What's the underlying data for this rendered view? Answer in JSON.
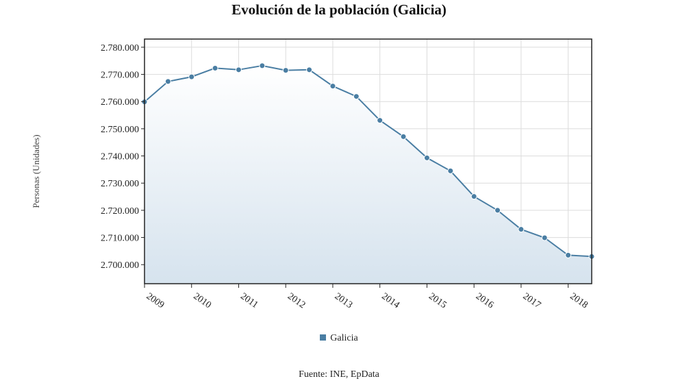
{
  "chart_data": {
    "type": "area",
    "title": "Evolución de la población (Galicia)",
    "xlabel": "",
    "ylabel": "Personas (Unidades)",
    "source": "Fuente: INE, EpData",
    "legend": {
      "label": "Galicia",
      "placement": "bottom-center"
    },
    "grid": true,
    "xlim": [
      2009,
      2018.5
    ],
    "ylim": [
      2693000,
      2783000
    ],
    "x_ticks": [
      2009,
      2010,
      2011,
      2012,
      2013,
      2014,
      2015,
      2016,
      2017,
      2018
    ],
    "x_tick_labels": [
      "2009",
      "2010",
      "2011",
      "2012",
      "2013",
      "2014",
      "2015",
      "2016",
      "2017",
      "2018"
    ],
    "y_ticks": [
      2700000,
      2710000,
      2720000,
      2730000,
      2740000,
      2750000,
      2760000,
      2770000,
      2780000
    ],
    "y_tick_labels": [
      "2.700.000",
      "2.710.000",
      "2.720.000",
      "2.730.000",
      "2.740.000",
      "2.750.000",
      "2.760.000",
      "2.770.000",
      "2.780.000"
    ],
    "series": [
      {
        "name": "Galicia",
        "color": "#4a7ea3",
        "x": [
          2009,
          2009.5,
          2010,
          2010.5,
          2011,
          2011.5,
          2012,
          2012.5,
          2013,
          2013.5,
          2014,
          2014.5,
          2015,
          2015.5,
          2016,
          2016.5,
          2017,
          2017.5,
          2018,
          2018.5
        ],
        "values": [
          2759900,
          2767400,
          2769100,
          2772300,
          2771700,
          2773200,
          2771500,
          2771700,
          2765700,
          2761900,
          2753100,
          2747100,
          2739300,
          2734500,
          2725100,
          2720000,
          2713000,
          2709900,
          2703500,
          2703000
        ]
      }
    ]
  }
}
